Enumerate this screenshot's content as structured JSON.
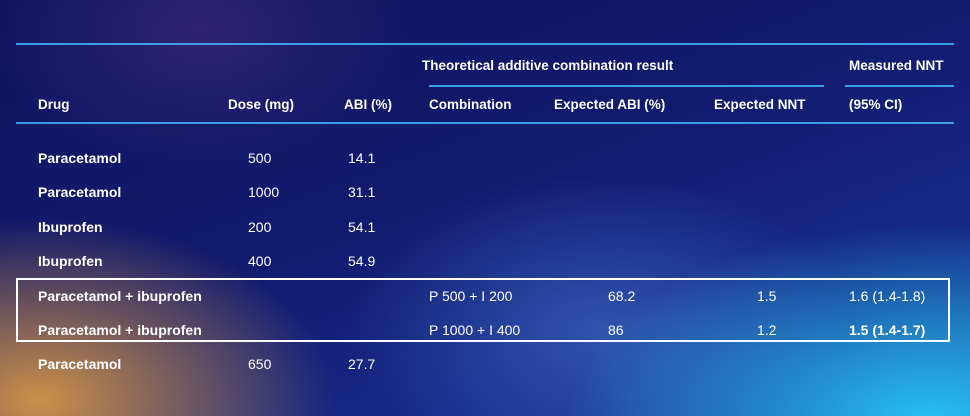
{
  "header": {
    "group_title": "Theoretical additive combination result",
    "measured_top": "Measured NNT",
    "measured_bottom": "(95% CI)",
    "col_drug": "Drug",
    "col_dose": "Dose (mg)",
    "col_abi": "ABI (%)",
    "col_combination": "Combination",
    "col_expected_abi": "Expected ABI (%)",
    "col_expected_nnt": "Expected NNT"
  },
  "rows": [
    {
      "drug": "Paracetamol",
      "dose": "500",
      "abi": "14.1",
      "combination": "",
      "expected_abi": "",
      "expected_nnt": "",
      "measured_nnt": ""
    },
    {
      "drug": "Paracetamol",
      "dose": "1000",
      "abi": "31.1",
      "combination": "",
      "expected_abi": "",
      "expected_nnt": "",
      "measured_nnt": ""
    },
    {
      "drug": "Ibuprofen",
      "dose": "200",
      "abi": "54.1",
      "combination": "",
      "expected_abi": "",
      "expected_nnt": "",
      "measured_nnt": ""
    },
    {
      "drug": "Ibuprofen",
      "dose": "400",
      "abi": "54.9",
      "combination": "",
      "expected_abi": "",
      "expected_nnt": "",
      "measured_nnt": ""
    },
    {
      "drug": "Paracetamol + ibuprofen",
      "dose": "",
      "abi": "",
      "combination": "P 500 + I 200",
      "expected_abi": "68.2",
      "expected_nnt": "1.5",
      "measured_nnt": "1.6 (1.4-1.8)"
    },
    {
      "drug": "Paracetamol + ibuprofen",
      "dose": "",
      "abi": "",
      "combination": "P 1000 + I 400",
      "expected_abi": "86",
      "expected_nnt": "1.2",
      "measured_nnt": "1.5 (1.4-1.7)"
    },
    {
      "drug": "Paracetamol",
      "dose": "650",
      "abi": "27.7",
      "combination": "",
      "expected_abi": "",
      "expected_nnt": "",
      "measured_nnt": ""
    }
  ],
  "colors": {
    "rule": "#3aa0e6",
    "text": "#ffffff",
    "highlight_border": "#ffffff"
  }
}
